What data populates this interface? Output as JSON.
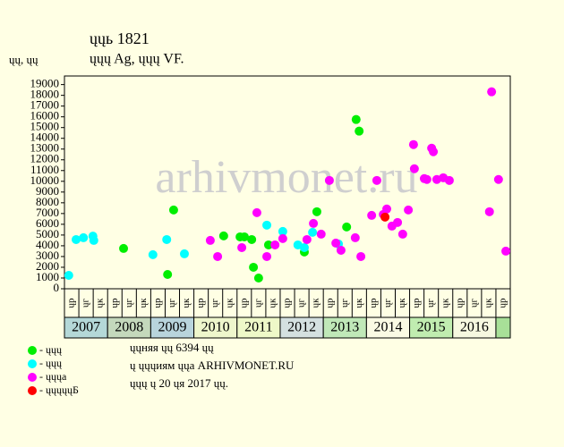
{
  "chart_data": {
    "type": "scatter",
    "title": "ųųь 1821",
    "subtitle": "ųųų Ag, ųųų VF.",
    "y_label": "ųų, ųų",
    "watermark": "arhivmonet.ru",
    "xlim": [
      2007,
      2017.333
    ],
    "ylim": [
      0,
      19800
    ],
    "yticks": [
      0,
      1000,
      2000,
      3000,
      4000,
      5000,
      6000,
      7000,
      8000,
      9000,
      10000,
      11000,
      12000,
      13000,
      14000,
      15000,
      16000,
      17000,
      18000,
      19000
    ],
    "categories": [
      "2007",
      "2008",
      "2009",
      "2010",
      "2011",
      "2012",
      "2013",
      "2014",
      "2015",
      "2016",
      null
    ],
    "category_colors": [
      "#b4d8d8",
      "#c4d8bc",
      "#b8d4dc",
      "#eef6cc",
      "#eef8c8",
      "#d4e0e0",
      "#c0e8b8",
      "#fafae4",
      "#c0ecb0",
      "#f6f8e0",
      "#a8e098"
    ],
    "period_labels": [
      "ųр",
      "ųг",
      "ųк"
    ],
    "series": [
      {
        "name": "- ųųų",
        "color": "#00ee00",
        "x": [
          2008.37,
          2009.53,
          2009.39,
          2010.69,
          2011.07,
          2011.17,
          2011.34,
          2011.38,
          2011.5,
          2011.73,
          2012.56,
          2012.85,
          2013.54,
          2013.76,
          2013.83
        ],
        "values": [
          3750,
          7330,
          1330,
          4920,
          4830,
          4830,
          4580,
          2000,
          1000,
          4080,
          3420,
          7170,
          5750,
          15750,
          14670
        ]
      },
      {
        "name": "- ųųų",
        "color": "#00ffff",
        "x": [
          2007.1,
          2007.27,
          2007.44,
          2007.66,
          2007.68,
          2009.05,
          2009.37,
          2009.78,
          2011.69,
          2012.06,
          2012.41,
          2012.56,
          2012.75,
          2013.35
        ],
        "values": [
          1250,
          4580,
          4750,
          4900,
          4500,
          3170,
          4580,
          3250,
          5920,
          5330,
          4080,
          3830,
          5250,
          4170
        ]
      },
      {
        "name": "- ųųųа",
        "color": "#ff00ff",
        "x": [
          2010.38,
          2010.55,
          2011.11,
          2011.46,
          2011.69,
          2011.88,
          2012.06,
          2012.62,
          2012.77,
          2012.95,
          2013.14,
          2013.29,
          2013.41,
          2013.74,
          2013.87,
          2014.12,
          2014.24,
          2014.39,
          2014.47,
          2014.59,
          2014.72,
          2014.84,
          2014.97,
          2015.09,
          2015.11,
          2015.34,
          2015.4,
          2015.51,
          2015.55,
          2015.63,
          2015.78,
          2015.92,
          2016.85,
          2016.9,
          2017.06,
          2017.23
        ],
        "values": [
          4500,
          3000,
          3830,
          7080,
          3000,
          4080,
          4670,
          4580,
          6080,
          5080,
          10080,
          4250,
          3580,
          4750,
          3000,
          6830,
          10080,
          6920,
          7420,
          5830,
          6170,
          5080,
          7330,
          13420,
          11170,
          10250,
          10170,
          13080,
          12750,
          10170,
          10330,
          10080,
          7170,
          18330,
          10170,
          3500
        ]
      },
      {
        "name": "- ųųųųųБ",
        "color": "#ff0000",
        "x": [
          2014.43
        ],
        "values": [
          6670
        ]
      }
    ],
    "footer": [
      "ųųняя ųų 6394 ųų",
      "ų ųųųиям ųųа ARHIVMONET.RU",
      "ųųų ų 20 ųя 2017 ųų."
    ]
  }
}
